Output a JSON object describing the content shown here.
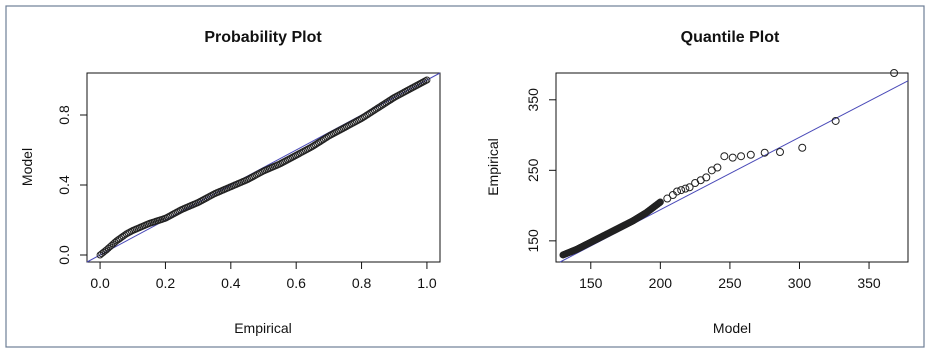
{
  "chart_data": [
    {
      "type": "scatter",
      "title": "Probability Plot",
      "xlabel": "Empirical",
      "ylabel": "Model",
      "xlim": [
        -0.04,
        1.04
      ],
      "ylim": [
        -0.04,
        1.04
      ],
      "xticks": [
        0.0,
        0.2,
        0.4,
        0.6,
        0.8,
        1.0
      ],
      "xtick_labels": [
        "0.0",
        "0.2",
        "0.4",
        "0.6",
        "0.8",
        "1.0"
      ],
      "yticks": [
        0.0,
        0.4,
        0.8
      ],
      "ytick_labels": [
        "0.0",
        "0.4",
        "0.8"
      ],
      "reference_line": {
        "x": [
          -0.04,
          1.04
        ],
        "y": [
          -0.04,
          1.04
        ],
        "color": "#4a4ab8"
      },
      "point_curve": {
        "n": 200,
        "x": [
          0.0,
          0.02,
          0.05,
          0.08,
          0.1,
          0.15,
          0.2,
          0.25,
          0.3,
          0.35,
          0.4,
          0.45,
          0.5,
          0.55,
          0.6,
          0.65,
          0.7,
          0.75,
          0.8,
          0.85,
          0.9,
          0.95,
          1.0
        ],
        "y": [
          0.0,
          0.03,
          0.08,
          0.12,
          0.14,
          0.18,
          0.21,
          0.26,
          0.3,
          0.35,
          0.39,
          0.43,
          0.48,
          0.52,
          0.57,
          0.62,
          0.68,
          0.73,
          0.78,
          0.84,
          0.9,
          0.95,
          1.0
        ]
      },
      "grid": false
    },
    {
      "type": "scatter",
      "title": "Quantile Plot",
      "xlabel": "Model",
      "ylabel": "Empirical",
      "xlim": [
        125,
        378
      ],
      "ylim": [
        120,
        388
      ],
      "xticks": [
        150,
        200,
        250,
        300,
        350
      ],
      "xtick_labels": [
        "150",
        "200",
        "250",
        "300",
        "350"
      ],
      "yticks": [
        150,
        250,
        350
      ],
      "ytick_labels": [
        "150",
        "250",
        "350"
      ],
      "reference_line": {
        "x": [
          125,
          378
        ],
        "y": [
          117,
          377
        ],
        "color": "#4a4ab8"
      },
      "point_curve": {
        "n": 160,
        "x": [
          130,
          140,
          150,
          160,
          170,
          180,
          190,
          200
        ],
        "y": [
          130,
          138,
          148,
          158,
          168,
          178,
          190,
          205
        ]
      },
      "points": [
        {
          "x": 205,
          "y": 210
        },
        {
          "x": 209,
          "y": 215
        },
        {
          "x": 212,
          "y": 220
        },
        {
          "x": 215,
          "y": 222
        },
        {
          "x": 218,
          "y": 224
        },
        {
          "x": 221,
          "y": 226
        },
        {
          "x": 225,
          "y": 232
        },
        {
          "x": 229,
          "y": 236
        },
        {
          "x": 233,
          "y": 240
        },
        {
          "x": 237,
          "y": 250
        },
        {
          "x": 241,
          "y": 254
        },
        {
          "x": 246,
          "y": 270
        },
        {
          "x": 252,
          "y": 268
        },
        {
          "x": 258,
          "y": 270
        },
        {
          "x": 265,
          "y": 272
        },
        {
          "x": 275,
          "y": 275
        },
        {
          "x": 286,
          "y": 276
        },
        {
          "x": 302,
          "y": 282
        },
        {
          "x": 326,
          "y": 320
        },
        {
          "x": 368,
          "y": 388
        }
      ],
      "grid": false
    }
  ]
}
